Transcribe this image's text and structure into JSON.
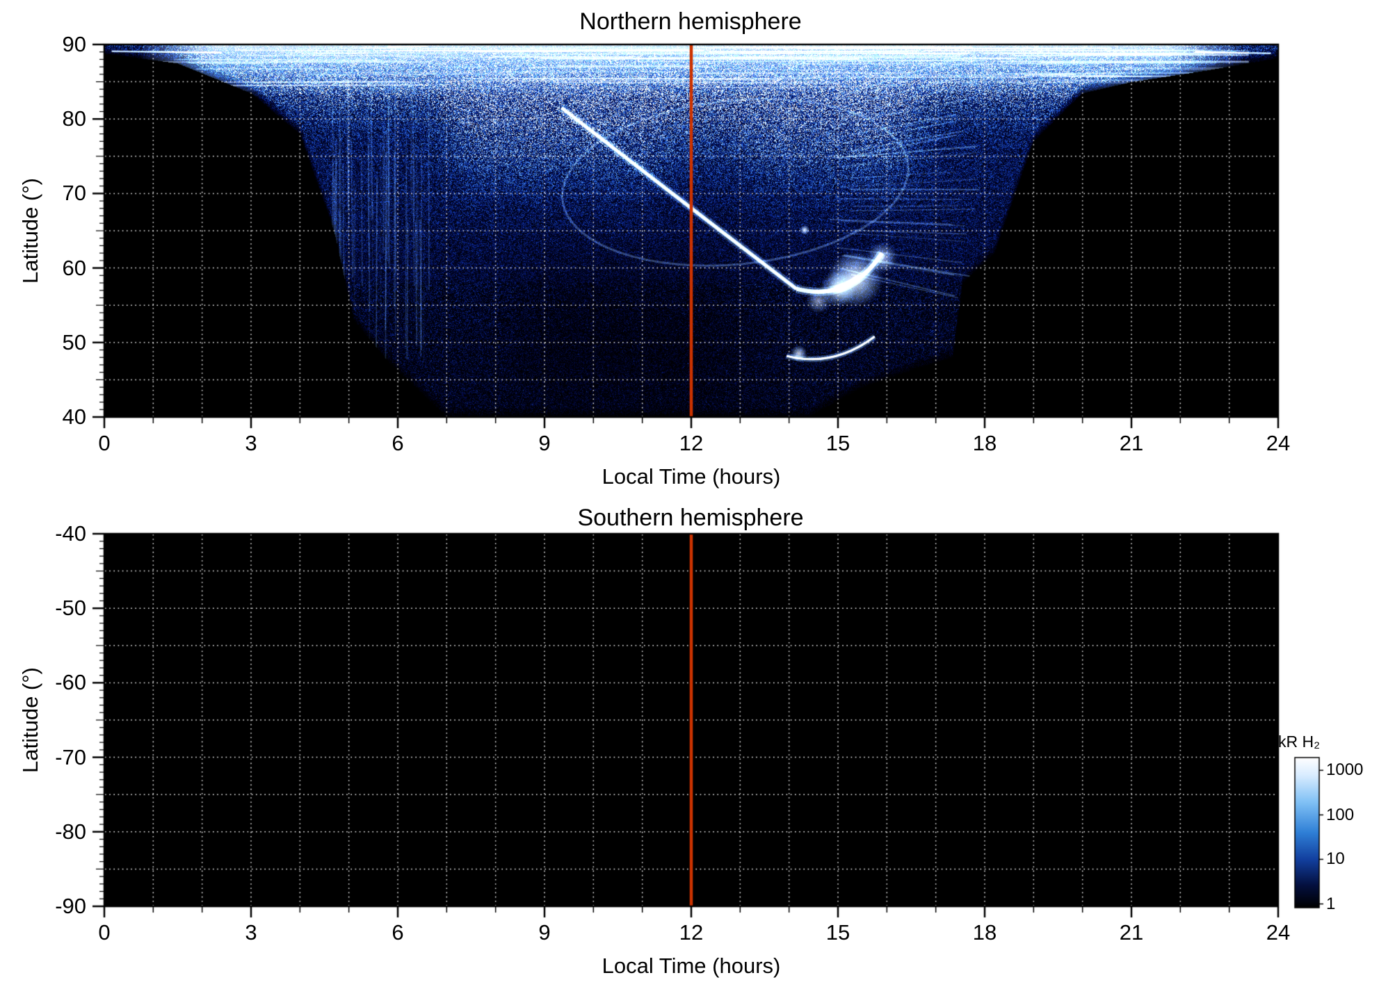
{
  "figure": {
    "background": "#ffffff"
  },
  "panels": {
    "north": {
      "title": "Northern hemisphere",
      "xlabel": "Local Time (hours)",
      "ylabel": "Latitude (°)",
      "x_range": [
        0,
        24
      ],
      "y_range": [
        40,
        90
      ],
      "x_ticks": [
        0,
        3,
        6,
        9,
        12,
        15,
        18,
        21,
        24
      ],
      "x_tick_labels": [
        "0",
        "3",
        "6",
        "9",
        "12",
        "15",
        "18",
        "21",
        "24"
      ],
      "y_ticks": [
        90,
        80,
        70,
        60,
        50,
        40
      ],
      "y_tick_labels": [
        "90",
        "80",
        "70",
        "60",
        "50",
        "40"
      ]
    },
    "south": {
      "title": "Southern hemisphere",
      "xlabel": "Local Time (hours)",
      "ylabel": "Latitude (°)",
      "x_range": [
        0,
        24
      ],
      "y_range": [
        -90,
        -40
      ],
      "x_ticks": [
        0,
        3,
        6,
        9,
        12,
        15,
        18,
        21,
        24
      ],
      "x_tick_labels": [
        "0",
        "3",
        "6",
        "9",
        "12",
        "15",
        "18",
        "21",
        "24"
      ],
      "y_ticks": [
        -40,
        -50,
        -60,
        -70,
        -80,
        -90
      ],
      "y_tick_labels": [
        "-40",
        "-50",
        "-60",
        "-70",
        "-80",
        "-90"
      ]
    }
  },
  "colorbar": {
    "title": "kR H₂",
    "tick_labels": [
      "1000",
      "100",
      "10",
      "1"
    ],
    "scale": "log",
    "range": [
      1,
      1000
    ]
  },
  "marker_line": {
    "x": 12,
    "color": "#cc3300"
  },
  "grid": {
    "color": "#ffffff",
    "style": "dotted",
    "x_step_hours": 1,
    "y_step_degrees": 5
  },
  "chart_data": [
    {
      "type": "heatmap",
      "title": "Northern hemisphere",
      "xlabel": "Local Time (hours)",
      "ylabel": "Latitude (°)",
      "xlim": [
        0,
        24
      ],
      "ylim": [
        40,
        90
      ],
      "x_ticks": [
        0,
        3,
        6,
        9,
        12,
        15,
        18,
        21,
        24
      ],
      "y_ticks": [
        40,
        50,
        60,
        70,
        80,
        90
      ],
      "grid": {
        "on": true,
        "style": "dotted",
        "color": "#ffffff"
      },
      "colorbar": {
        "label": "kR H₂",
        "scale": "log",
        "ticks": [
          1000,
          100,
          10,
          1
        ],
        "range": [
          1,
          1000
        ],
        "colormap": "black-darkblue-blue-lightblue-white"
      },
      "vertical_marker_line_x": 12,
      "background": "black (no emission)",
      "features": [
        {
          "name": "polar_cap_emission",
          "description": "bright streaky light-blue emission cap",
          "lat_range": [
            83,
            90
          ],
          "lt_range": [
            1,
            23
          ],
          "peak_kR": 500
        },
        {
          "name": "dayside_emission_funnel",
          "description": "speckled blue emission filling region poleward of this lower-boundary polyline (local time, latitude)",
          "boundary_lt_lat": [
            [
              0,
              88.8
            ],
            [
              1.5,
              87.5
            ],
            [
              3,
              83.5
            ],
            [
              4,
              78
            ],
            [
              4.7,
              65
            ],
            [
              5.1,
              53
            ],
            [
              5.8,
              47.5
            ],
            [
              7,
              40
            ],
            [
              14.4,
              40
            ],
            [
              15.5,
              44
            ],
            [
              16.6,
              46.5
            ],
            [
              17.35,
              48
            ],
            [
              17.55,
              58
            ],
            [
              18.2,
              62
            ],
            [
              19,
              77
            ],
            [
              20,
              83.5
            ],
            [
              21,
              85
            ],
            [
              22.5,
              86.5
            ],
            [
              24,
              88.2
            ]
          ]
        },
        {
          "name": "main_auroral_arc",
          "description": "narrow bright white arc descending from late morning to afternoon",
          "start_lt_lat": [
            9.35,
            81.5
          ],
          "ctrl_lt_lat": [
            11.7,
            69.5
          ],
          "end_lt_lat": [
            14.15,
            57.2
          ],
          "peak_kR": 1000
        },
        {
          "name": "hook_arc",
          "description": "arc hooks back poleward at dusk",
          "start_lt_lat": [
            14.15,
            57.2
          ],
          "ctrl_lt_lat": [
            15.25,
            55.4
          ],
          "end_lt_lat": [
            15.9,
            62.0
          ]
        },
        {
          "name": "afternoon_bright_spot",
          "description": "saturated white emission patch",
          "lt": 15.35,
          "lat": 58.5,
          "peak_kR": 1000
        },
        {
          "name": "secondary_low_arc",
          "description": "small bright arc at low latitude",
          "start_lt_lat": [
            13.95,
            48.2
          ],
          "ctrl_lt_lat": [
            14.9,
            46.6
          ],
          "end_lt_lat": [
            15.75,
            50.8
          ]
        },
        {
          "name": "auroral_oval_ring",
          "description": "faint oval outline around dark mottled interior",
          "center_lt_lat": [
            12.9,
            71.5
          ],
          "rx_hours": 3.55,
          "ry_degrees": 11
        },
        {
          "name": "small_bright_dot",
          "lt": 14.32,
          "lat": 65.1
        },
        {
          "name": "dawnside_vertical_striations",
          "lt_range": [
            4.7,
            6.6
          ],
          "lat_range": [
            48,
            85
          ]
        },
        {
          "name": "duskside_fan_streaks",
          "lt_range": [
            14.9,
            17.9
          ],
          "lat_range": [
            58,
            88
          ]
        },
        {
          "name": "top_edge_thin_arcs",
          "segments_lt_lat": [
            [
              [
                0.15,
                89.1
              ],
              [
                2.4,
                88.9
              ]
            ],
            [
              [
                22.3,
                89.0
              ],
              [
                23.85,
                88.8
              ]
            ]
          ]
        }
      ]
    },
    {
      "type": "heatmap",
      "title": "Southern hemisphere",
      "xlabel": "Local Time (hours)",
      "ylabel": "Latitude (°)",
      "xlim": [
        0,
        24
      ],
      "ylim": [
        -90,
        -40
      ],
      "x_ticks": [
        0,
        3,
        6,
        9,
        12,
        15,
        18,
        21,
        24
      ],
      "y_ticks": [
        -90,
        -80,
        -70,
        -60,
        -50,
        -40
      ],
      "grid": {
        "on": true,
        "style": "dotted",
        "color": "#ffffff"
      },
      "vertical_marker_line_x": 12,
      "values": "no emission — uniform black background"
    }
  ]
}
